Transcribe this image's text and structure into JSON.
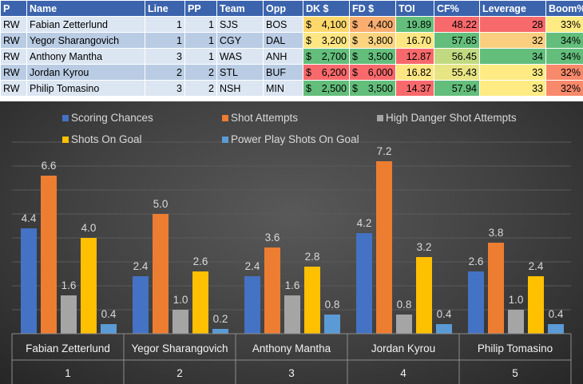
{
  "table": {
    "headers": [
      "P",
      "Name",
      "Line",
      "PP",
      "Team",
      "Opp",
      "DK $",
      "FD $",
      "TOI",
      "CF%",
      "Leverage",
      "Boom%"
    ],
    "rows": [
      {
        "p": "RW",
        "name": "Fabian Zetterlund",
        "line": "1",
        "pp": "1",
        "team": "SJS",
        "opp": "BOS",
        "dk": "4,100",
        "fd": "4,400",
        "toi": "19.89",
        "cf": "48.22",
        "leverage": "28",
        "boom": "33%",
        "colors": {
          "dk": "#ffd86b",
          "fd": "#f9ae70",
          "toi": "#63be7b",
          "cf": "#f8696b",
          "leverage": "#f8696b",
          "boom": "#ffeb84"
        }
      },
      {
        "p": "RW",
        "name": "Yegor Sharangovich",
        "line": "1",
        "pp": "1",
        "team": "CGY",
        "opp": "DAL",
        "dk": "3,200",
        "fd": "3,800",
        "toi": "16.70",
        "cf": "57.65",
        "leverage": "32",
        "boom": "34%",
        "colors": {
          "dk": "#fee683",
          "fd": "#fcd480",
          "toi": "#fee683",
          "cf": "#63be7b",
          "leverage": "#f9cf7f",
          "boom": "#63be7b"
        }
      },
      {
        "p": "RW",
        "name": "Anthony Mantha",
        "line": "3",
        "pp": "1",
        "team": "WAS",
        "opp": "ANH",
        "dk": "2,700",
        "fd": "3,500",
        "toi": "12.87",
        "cf": "56.45",
        "leverage": "34",
        "boom": "34%",
        "colors": {
          "dk": "#63be7b",
          "fd": "#63be7b",
          "toi": "#f8696b",
          "cf": "#c1da81",
          "leverage": "#63be7b",
          "boom": "#63be7b"
        }
      },
      {
        "p": "RW",
        "name": "Jordan Kyrou",
        "line": "2",
        "pp": "2",
        "team": "STL",
        "opp": "BUF",
        "dk": "6,200",
        "fd": "6,000",
        "toi": "16.82",
        "cf": "55.43",
        "leverage": "33",
        "boom": "32%",
        "colors": {
          "dk": "#f8696b",
          "fd": "#f8696b",
          "toi": "#fee683",
          "cf": "#e7e483",
          "leverage": "#ffeb84",
          "boom": "#f8896b"
        }
      },
      {
        "p": "RW",
        "name": "Philip Tomasino",
        "line": "3",
        "pp": "2",
        "team": "NSH",
        "opp": "MIN",
        "dk": "2,500",
        "fd": "3,500",
        "toi": "14.37",
        "cf": "57.94",
        "leverage": "33",
        "boom": "32%",
        "colors": {
          "dk": "#63be7b",
          "fd": "#63be7b",
          "toi": "#f8696b",
          "cf": "#63be7b",
          "leverage": "#ffeb84",
          "boom": "#f8896b"
        }
      }
    ],
    "currency_symbol": "$"
  },
  "chart_data": {
    "type": "bar",
    "categories": [
      "Fabian Zetterlund",
      "Yegor Sharangovich",
      "Anthony Mantha",
      "Jordan Kyrou",
      "Philip Tomasino"
    ],
    "category_numbers": [
      "1",
      "2",
      "3",
      "4",
      "5"
    ],
    "series": [
      {
        "name": "Scoring Chances",
        "color": "#4472c4",
        "values": [
          4.4,
          2.4,
          2.4,
          4.2,
          2.6
        ]
      },
      {
        "name": "Shot Attempts",
        "color": "#ed7d31",
        "values": [
          6.6,
          5.0,
          3.6,
          7.2,
          3.8
        ]
      },
      {
        "name": "High Danger Shot Attempts",
        "color": "#a5a5a5",
        "values": [
          1.6,
          1.0,
          1.6,
          0.8,
          1.0
        ]
      },
      {
        "name": "Shots On Goal",
        "color": "#ffc000",
        "values": [
          4.0,
          2.6,
          2.8,
          3.2,
          2.4
        ]
      },
      {
        "name": "Power Play Shots On Goal",
        "color": "#5b9bd5",
        "values": [
          0.4,
          0.2,
          0.8,
          0.4,
          0.4
        ]
      }
    ],
    "value_labels": [
      [
        "4.4",
        "2.4",
        "2.4",
        "4.2",
        "2.6"
      ],
      [
        "6.6",
        "5.0",
        "3.6",
        "7.2",
        "3.8"
      ],
      [
        "1.6",
        "1.0",
        "1.6",
        "0.8",
        "1.0"
      ],
      [
        "4.0",
        "2.6",
        "2.8",
        "3.2",
        "2.4"
      ],
      [
        "0.4",
        "0.2",
        "0.8",
        "0.4",
        "0.4"
      ]
    ],
    "ylim": [
      0,
      8
    ],
    "grid": true,
    "legend_position": "top",
    "title": "",
    "xlabel": "",
    "ylabel": ""
  }
}
